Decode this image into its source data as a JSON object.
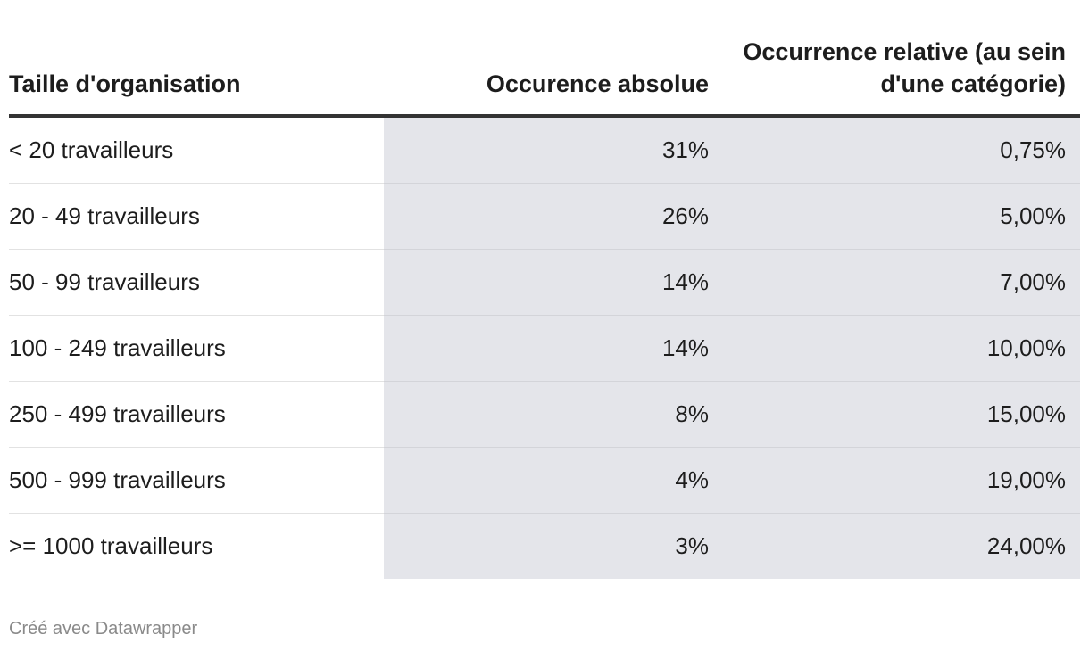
{
  "chart_data": {
    "type": "table",
    "columns": [
      "Taille d'organisation",
      "Occurence absolue",
      "Occurrence relative (au sein d'une catégorie)"
    ],
    "rows": [
      [
        "< 20 travailleurs",
        "31%",
        "0,75%"
      ],
      [
        "20 - 49 travailleurs",
        "26%",
        "5,00%"
      ],
      [
        "50 - 99 travailleurs",
        "14%",
        "7,00%"
      ],
      [
        "100 - 249 travailleurs",
        "14%",
        "10,00%"
      ],
      [
        "250 - 499 travailleurs",
        "8%",
        "15,00%"
      ],
      [
        "500 - 999 travailleurs",
        "4%",
        "19,00%"
      ],
      [
        ">= 1000 travailleurs",
        "3%",
        "24,00%"
      ]
    ],
    "colors": {
      "header_rule": "#333333",
      "value_column_background": "#e4e5ea",
      "row_divider": "#e2e2e2"
    }
  },
  "footer": {
    "credit": "Créé avec Datawrapper"
  }
}
